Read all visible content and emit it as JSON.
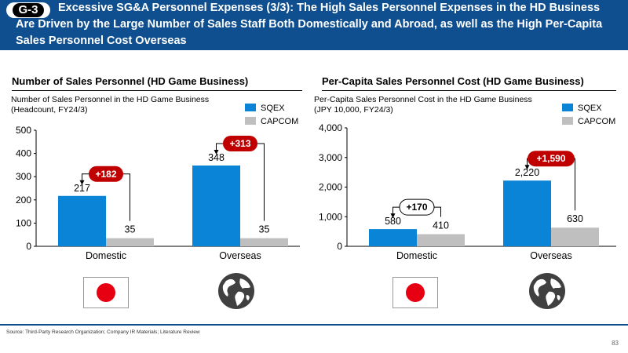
{
  "header": {
    "badge": "G-3",
    "title": "Excessive SG&A Personnel Expenses (3/3): The High Sales Personnel Expenses in the HD Business Are Driven by the Large Number of Sales Staff Both Domestically and Abroad, as well as the High Per-Capita Sales Personnel Cost Overseas"
  },
  "colors": {
    "sqex": "#0a84d6",
    "capcom": "#bfbfbf",
    "diff": "#c00000",
    "header": "#0f4f8f"
  },
  "legend": {
    "sqex": "SQEX",
    "capcom": "CAPCOM"
  },
  "icons": {
    "japan": "japan-flag-icon",
    "world": "globe-icon"
  },
  "chart_data": [
    {
      "type": "bar",
      "section_title": "Number of Sales Personnel (HD Game Business)",
      "subtitle_line1": "Number of Sales Personnel in the HD Game Business",
      "subtitle_line2": "(Headcount, FY24/3)",
      "categories": [
        "Domestic",
        "Overseas"
      ],
      "series": [
        {
          "name": "SQEX",
          "values": [
            217,
            348
          ]
        },
        {
          "name": "CAPCOM",
          "values": [
            35,
            35
          ]
        }
      ],
      "value_labels": {
        "SQEX": [
          "217",
          "348"
        ],
        "CAPCOM": [
          "35",
          "35"
        ]
      },
      "differences": [
        "+182",
        "+313"
      ],
      "ylim": [
        0,
        500
      ],
      "yticks": [
        0,
        100,
        200,
        300,
        400,
        500
      ],
      "ytick_labels": [
        "0",
        "100",
        "200",
        "300",
        "400",
        "500"
      ],
      "grid": false,
      "legend_position": "top-right"
    },
    {
      "type": "bar",
      "section_title": "Per-Capita Sales Personnel Cost (HD Game Business)",
      "subtitle_line1": "Per-Capita Sales Personnel Cost in the HD Game Business",
      "subtitle_line2": "(JPY 10,000, FY24/3)",
      "categories": [
        "Domestic",
        "Overseas"
      ],
      "series": [
        {
          "name": "SQEX",
          "values": [
            580,
            2220
          ]
        },
        {
          "name": "CAPCOM",
          "values": [
            410,
            630
          ]
        }
      ],
      "value_labels": {
        "SQEX": [
          "580",
          "2,220"
        ],
        "CAPCOM": [
          "410",
          "630"
        ]
      },
      "differences": [
        "+170",
        "+1,590"
      ],
      "ylim": [
        0,
        4000
      ],
      "yticks": [
        0,
        1000,
        2000,
        3000,
        4000
      ],
      "ytick_labels": [
        "0",
        "1,000",
        "2,000",
        "3,000",
        "4,000"
      ],
      "grid": false,
      "legend_position": "top-right"
    }
  ],
  "footer": {
    "source": "Source: Third-Party Research Organization; Company IR Materials; Literature Review",
    "page": "83"
  }
}
